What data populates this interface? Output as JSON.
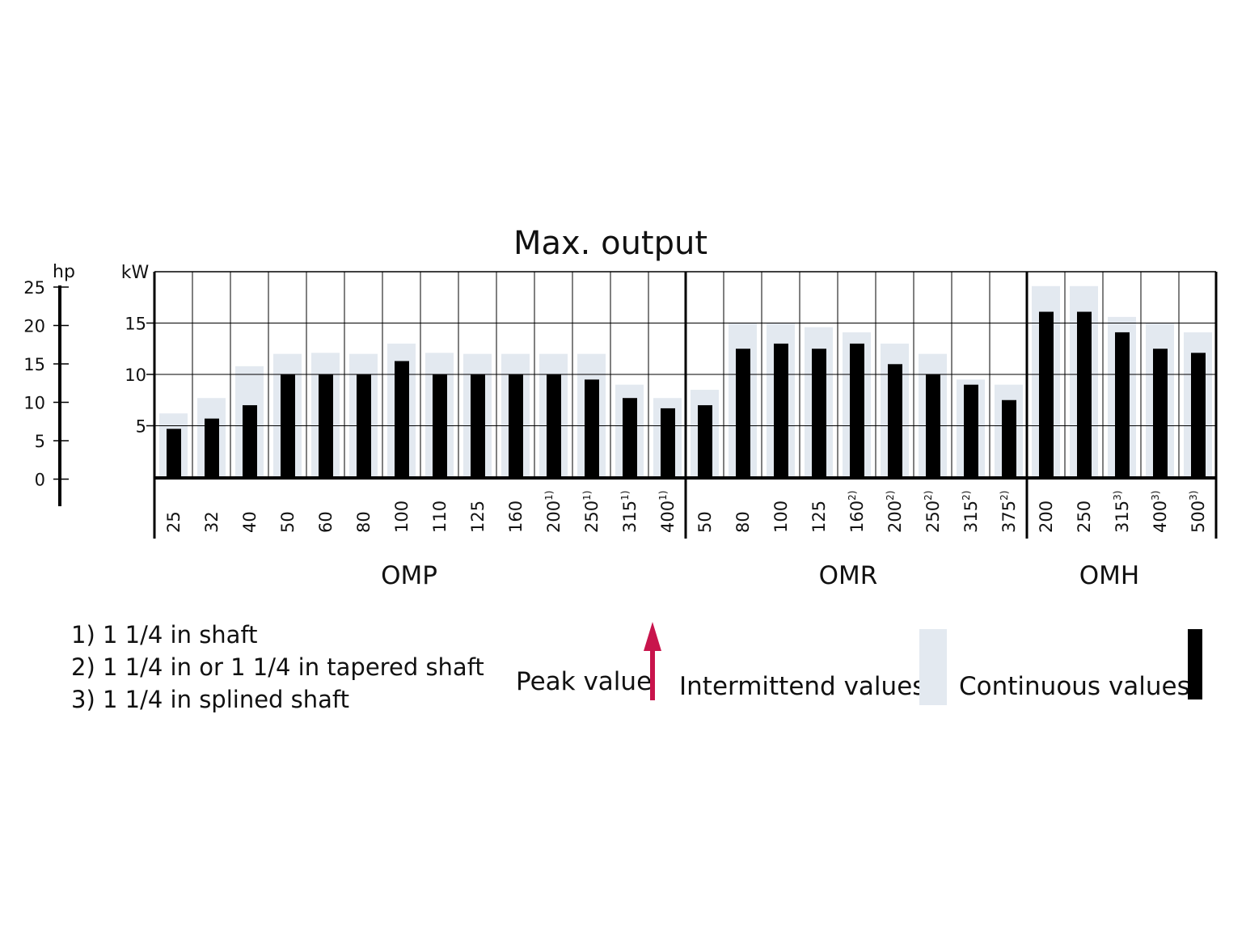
{
  "chart_data": {
    "type": "bar",
    "title": "Max. output",
    "y_unit_left": "hp",
    "y_unit_right": "kW",
    "hp_ticks": [
      "25",
      "20",
      "15",
      "10",
      "5",
      "0"
    ],
    "kw_ticks": [
      "15",
      "10",
      "5"
    ],
    "ylim_kw": [
      0,
      20
    ],
    "groups": [
      {
        "name": "OMP",
        "categories": [
          "25",
          "32",
          "40",
          "50",
          "60",
          "80",
          "100",
          "110",
          "125",
          "160",
          "200",
          "250",
          "315",
          "400"
        ],
        "superscripts": [
          "",
          "",
          "",
          "",
          "",
          "",
          "",
          "",
          "",
          "",
          "1)",
          "1)",
          "1)",
          "1)"
        ]
      },
      {
        "name": "OMR",
        "categories": [
          "50",
          "80",
          "100",
          "125",
          "160",
          "200",
          "250",
          "315",
          "375"
        ],
        "superscripts": [
          "",
          "",
          "",
          "",
          "2)",
          "2)",
          "2)",
          "2)",
          "2)"
        ]
      },
      {
        "name": "OMH",
        "categories": [
          "200",
          "250",
          "315",
          "400",
          "500"
        ],
        "superscripts": [
          "",
          "",
          "3)",
          "3)",
          "3)"
        ]
      }
    ],
    "series": [
      {
        "name": "Intermittend values",
        "color": "#e3e9f0",
        "values": [
          6.2,
          7.7,
          10.8,
          12.0,
          12.1,
          12.0,
          13.0,
          12.1,
          12.0,
          12.0,
          12.0,
          12.0,
          9.0,
          7.7,
          8.5,
          15.0,
          15.0,
          14.6,
          14.1,
          13.0,
          12.0,
          9.5,
          9.0,
          18.6,
          18.6,
          15.6,
          15.0,
          14.1
        ]
      },
      {
        "name": "Continuous values",
        "color": "#000000",
        "values": [
          4.7,
          5.7,
          7.0,
          10.0,
          10.0,
          10.0,
          11.3,
          10.0,
          10.0,
          10.0,
          10.0,
          9.5,
          7.7,
          6.7,
          7.0,
          12.5,
          13.0,
          12.5,
          13.0,
          11.0,
          10.0,
          9.0,
          7.5,
          16.1,
          16.1,
          14.1,
          12.5,
          12.1
        ]
      }
    ],
    "grid": true,
    "legend": {
      "peak": "Peak value",
      "intermittend": "Intermittend values",
      "continuous": "Continuous values"
    },
    "peak_color": "#c8144c"
  },
  "footnotes": [
    "1)  1 1/4 in shaft",
    "2)  1 1/4 in or 1 1/4 in tapered shaft",
    "3)  1 1/4 in splined shaft"
  ]
}
